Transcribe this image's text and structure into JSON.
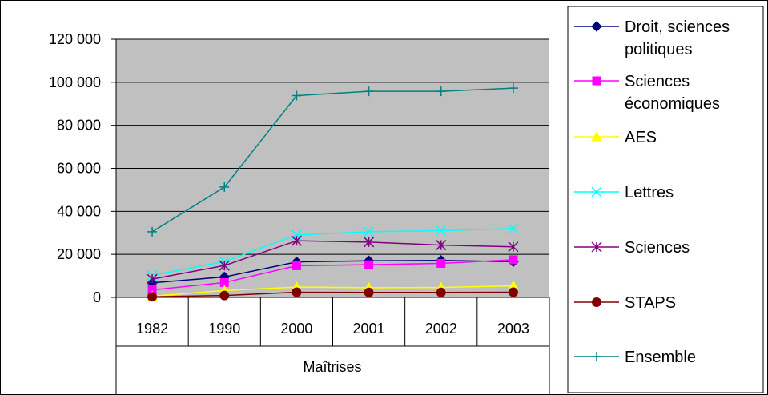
{
  "chart_data": {
    "type": "line",
    "categories": [
      "1982",
      "1990",
      "2000",
      "2001",
      "2002",
      "2003"
    ],
    "group_label": "Maîtrises",
    "ylim": [
      0,
      120000
    ],
    "y_ticks": [
      {
        "value": 0,
        "label": "0"
      },
      {
        "value": 20000,
        "label": "20 000"
      },
      {
        "value": 40000,
        "label": "40 000"
      },
      {
        "value": 60000,
        "label": "60 000"
      },
      {
        "value": 80000,
        "label": "80 000"
      },
      {
        "value": 100000,
        "label": "100 000"
      },
      {
        "value": 120000,
        "label": "120 000"
      }
    ],
    "grid": true,
    "plot_background": "#c0c0c0",
    "legend_position": "right",
    "series": [
      {
        "name": "Droit, sciences politiques",
        "name_lines": [
          "Droit, sciences",
          "politiques"
        ],
        "color": "#000080",
        "marker": "diamond",
        "values": [
          6800,
          9500,
          16500,
          17000,
          17200,
          16600
        ]
      },
      {
        "name": "Sciences économiques",
        "name_lines": [
          "Sciences",
          "économiques"
        ],
        "color": "#ff00ff",
        "marker": "square",
        "values": [
          3500,
          6900,
          14700,
          15200,
          15800,
          17500
        ]
      },
      {
        "name": "AES",
        "name_lines": [
          "AES"
        ],
        "color": "#ffff00",
        "marker": "triangle",
        "values": [
          600,
          3200,
          4800,
          4500,
          4600,
          5400
        ]
      },
      {
        "name": "Lettres",
        "name_lines": [
          "Lettres"
        ],
        "color": "#00ffff",
        "marker": "x",
        "values": [
          10200,
          16700,
          29000,
          30500,
          31000,
          32000
        ]
      },
      {
        "name": "Sciences",
        "name_lines": [
          "Sciences"
        ],
        "color": "#800080",
        "marker": "asterisk",
        "values": [
          8500,
          14800,
          26300,
          25700,
          24300,
          23500
        ]
      },
      {
        "name": "STAPS",
        "name_lines": [
          "STAPS"
        ],
        "color": "#800000",
        "marker": "circle",
        "values": [
          300,
          900,
          2400,
          2300,
          2300,
          2400
        ]
      },
      {
        "name": "Ensemble",
        "name_lines": [
          "Ensemble"
        ],
        "color": "#008080",
        "marker": "plus",
        "values": [
          30500,
          51300,
          93800,
          95800,
          95800,
          97300
        ]
      }
    ]
  }
}
